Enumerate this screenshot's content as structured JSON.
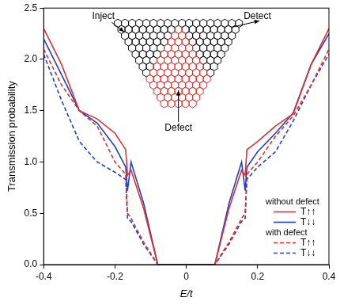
{
  "chart_data": {
    "type": "line",
    "x_label": "E/t",
    "y_label": "Transmission probability",
    "x": [
      -0.4,
      -0.35,
      -0.3,
      -0.25,
      -0.2,
      -0.17,
      -0.165,
      -0.155,
      -0.12,
      -0.08,
      0,
      0.08,
      0.12,
      0.155,
      0.165,
      0.17,
      0.2,
      0.25,
      0.3,
      0.35,
      0.4
    ],
    "series": [
      {
        "name": "T↑↑",
        "color": "#e0302e",
        "line_style": "solid",
        "values": [
          2.3,
          1.95,
          1.5,
          1.42,
          1.28,
          1.12,
          0.87,
          0.92,
          0.55,
          0,
          0,
          0,
          0.55,
          0.92,
          0.87,
          1.12,
          1.2,
          1.35,
          1.47,
          1.95,
          2.3
        ]
      },
      {
        "name": "T↓↓",
        "color": "#2040c0",
        "line_style": "solid",
        "values": [
          2.2,
          1.85,
          1.5,
          1.38,
          1.15,
          0.95,
          0.72,
          1.0,
          0.6,
          0,
          0,
          0,
          0.6,
          1.0,
          0.72,
          0.95,
          1.1,
          1.28,
          1.48,
          1.95,
          2.25
        ]
      },
      {
        "name": "T↑↑",
        "color": "#e0302e",
        "line_style": "dashed",
        "values": [
          2.1,
          1.75,
          1.5,
          1.35,
          1.0,
          0.88,
          0.5,
          0.45,
          0.22,
          0,
          0,
          0,
          0.22,
          0.45,
          0.5,
          0.88,
          1.0,
          1.25,
          1.45,
          1.75,
          2.1
        ]
      },
      {
        "name": "T↓↓",
        "color": "#2040c0",
        "line_style": "dashed",
        "values": [
          2.05,
          1.6,
          1.2,
          1.0,
          0.9,
          0.83,
          0.45,
          0.42,
          0.2,
          0,
          0,
          0,
          0.2,
          0.42,
          0.45,
          0.83,
          0.95,
          1.1,
          1.4,
          1.75,
          2.05
        ]
      }
    ],
    "xlim": [
      -0.4,
      0.4
    ],
    "xticks": [
      -0.4,
      -0.2,
      0,
      0.2,
      0.4
    ],
    "ylim": [
      0,
      2.5
    ],
    "yticks": [
      {
        "value": 0,
        "label": "0.0"
      },
      0.5,
      {
        "value": 1,
        "label": "1.0"
      },
      1.5,
      {
        "value": 2,
        "label": "2.0"
      },
      2.5
    ],
    "grid": false,
    "legend": "lower right",
    "annotations": [
      "without defect",
      "with defect"
    ],
    "inset_labels": [
      "Inject",
      "Detect",
      "Defect"
    ]
  }
}
